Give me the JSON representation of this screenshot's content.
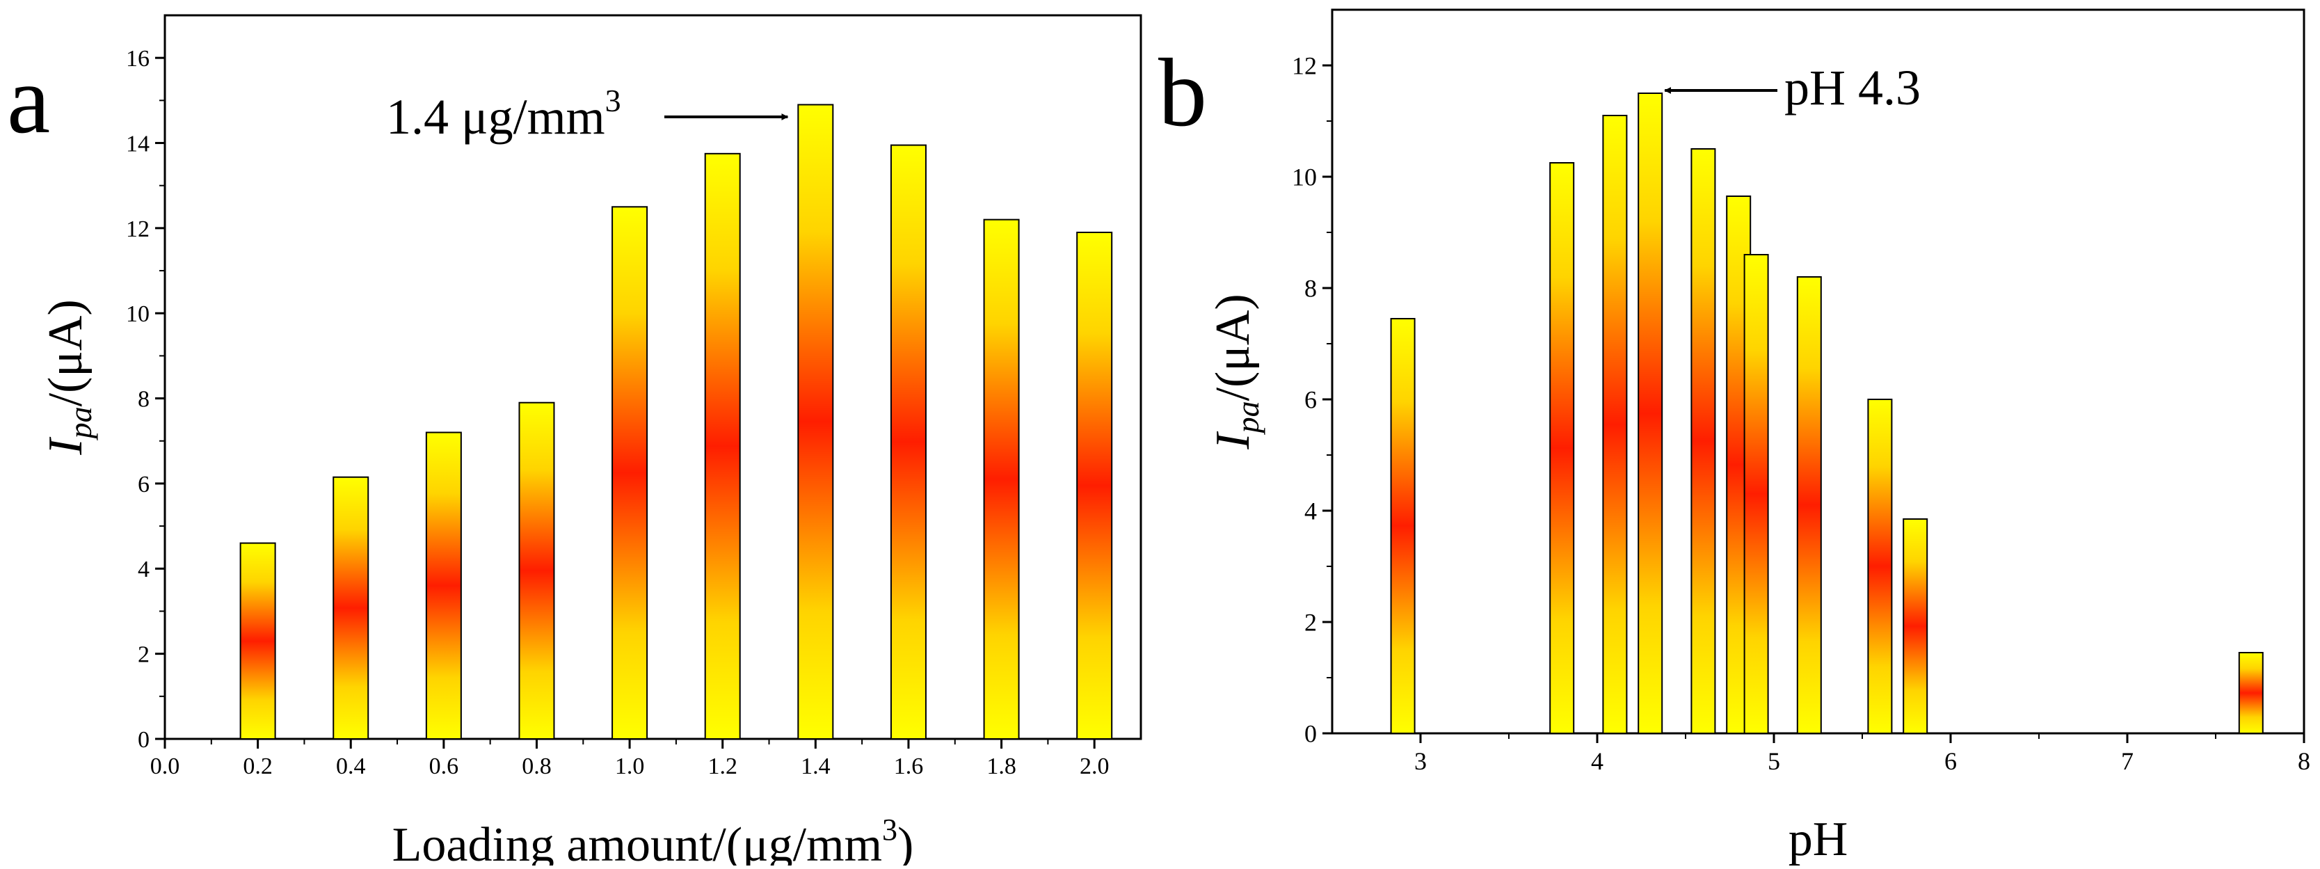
{
  "chart_data": [
    {
      "panel_label": "a",
      "type": "bar",
      "categories": [
        0.2,
        0.4,
        0.6,
        0.8,
        1.0,
        1.2,
        1.4,
        1.6,
        1.8,
        2.0
      ],
      "values": [
        4.6,
        6.15,
        7.2,
        7.9,
        12.5,
        13.75,
        14.9,
        13.95,
        12.2,
        11.9
      ],
      "xlabel_main": "Loading amount/(μg/mm",
      "xlabel_sup": "3",
      "xlabel_end": ")",
      "ylabel_base": "I",
      "ylabel_sub": "pa",
      "ylabel_unit": "/(μA)",
      "xlim": [
        0.0,
        2.1
      ],
      "ylim": [
        0,
        17
      ],
      "xticks": [
        "0.0",
        "0.2",
        "0.4",
        "0.6",
        "0.8",
        "1.0",
        "1.2",
        "1.4",
        "1.6",
        "1.8",
        "2.0"
      ],
      "yticks": [
        "0",
        "2",
        "4",
        "6",
        "8",
        "10",
        "12",
        "14",
        "16"
      ],
      "annotation": {
        "text": "1.4 μg/mm",
        "sup": "3",
        "target_x": 1.4,
        "target_y": 14.9
      }
    },
    {
      "panel_label": "b",
      "type": "bar",
      "x": [
        2.9,
        3.8,
        4.1,
        4.3,
        4.6,
        4.8,
        4.9,
        5.2,
        5.6,
        5.8,
        7.7
      ],
      "values": [
        7.45,
        10.25,
        11.1,
        11.5,
        10.5,
        9.65,
        8.6,
        8.2,
        6.0,
        3.85,
        1.45
      ],
      "xlabel": "pH",
      "ylabel_base": "I",
      "ylabel_sub": "pa",
      "ylabel_unit": "/(μA)",
      "xlim": [
        2.5,
        8
      ],
      "ylim": [
        0,
        13
      ],
      "xticks": [
        "3",
        "4",
        "5",
        "6",
        "7",
        "8"
      ],
      "yticks": [
        "0",
        "2",
        "4",
        "6",
        "8",
        "10",
        "12"
      ],
      "annotation": {
        "text": "pH 4.3",
        "target_x": 4.3,
        "target_y": 11.5
      }
    }
  ]
}
